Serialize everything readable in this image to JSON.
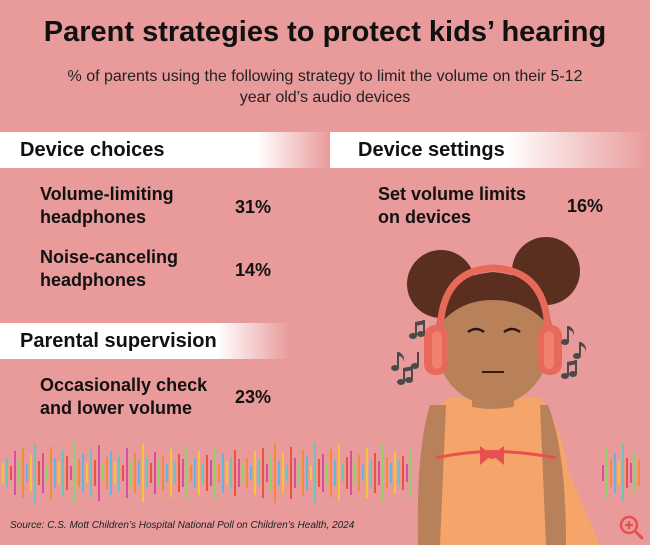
{
  "title": "Parent strategies to protect kids’ hearing",
  "subtitle": "% of parents using the following strategy to limit the volume on their 5-12 year old’s audio devices",
  "sections": {
    "device_choices": {
      "heading": "Device choices",
      "items": [
        {
          "label_line1": "Volume-limiting",
          "label_line2": "headphones",
          "value": "31%"
        },
        {
          "label_line1": "Noise-canceling",
          "label_line2": "headphones",
          "value": "14%"
        }
      ]
    },
    "device_settings": {
      "heading": "Device settings",
      "items": [
        {
          "label_line1": "Set volume limits",
          "label_line2": "on devices",
          "value": "16%"
        }
      ]
    },
    "parental_supervision": {
      "heading": "Parental supervision",
      "items": [
        {
          "label_line1": "Occasionally check",
          "label_line2": "and lower volume",
          "value": "23%"
        }
      ]
    }
  },
  "source": "Source: C.S. Mott Children’s Hospital National Poll on Children’s Health, 2024",
  "colors": {
    "background": "#e99a9a",
    "skin": "#b9815a",
    "hair": "#5a2f20",
    "headphones": "#e8685a",
    "shirt": "#f5a56a",
    "notes": "#4a4a4a"
  },
  "icons": [
    "music-note-icon",
    "zoom-in-icon"
  ]
}
